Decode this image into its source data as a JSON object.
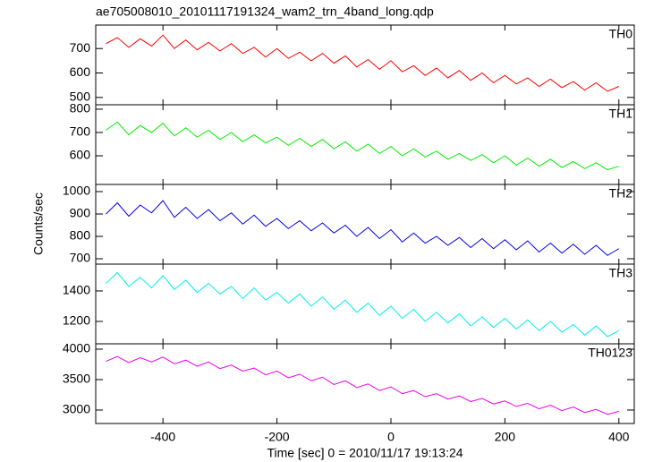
{
  "chart_data": {
    "type": "line",
    "title": "ae705008010_20101117191324_wam2_trn_4band_long.qdp",
    "x_label": "Time [sec] 0 = 2010/11/17 19:13:24",
    "y_label": "Counts/sec",
    "xlim": [
      -518,
      427
    ],
    "xticks": [
      -400,
      -200,
      0,
      200,
      400
    ],
    "x": [
      -500,
      -480,
      -460,
      -440,
      -420,
      -400,
      -380,
      -360,
      -340,
      -320,
      -300,
      -280,
      -260,
      -240,
      -220,
      -200,
      -180,
      -160,
      -140,
      -120,
      -100,
      -80,
      -60,
      -40,
      -20,
      0,
      20,
      40,
      60,
      80,
      100,
      120,
      140,
      160,
      180,
      200,
      220,
      240,
      260,
      280,
      300,
      320,
      340,
      360,
      380,
      400
    ],
    "series": [
      {
        "name": "TH0",
        "color": "#ff0000",
        "ylim": [
          470,
          796
        ],
        "yticks": [
          500,
          600,
          700
        ],
        "values": [
          720,
          745,
          705,
          740,
          710,
          755,
          700,
          735,
          695,
          725,
          690,
          720,
          680,
          705,
          665,
          700,
          660,
          685,
          650,
          680,
          640,
          670,
          625,
          655,
          615,
          650,
          605,
          630,
          590,
          620,
          580,
          610,
          570,
          600,
          560,
          590,
          555,
          580,
          545,
          575,
          540,
          565,
          530,
          560,
          525,
          545
        ]
      },
      {
        "name": "TH1",
        "color": "#00ee00",
        "ylim": [
          477,
          819
        ],
        "yticks": [
          600,
          700,
          800
        ],
        "values": [
          710,
          745,
          690,
          730,
          700,
          740,
          685,
          720,
          680,
          710,
          670,
          700,
          660,
          690,
          655,
          680,
          645,
          675,
          640,
          670,
          630,
          660,
          620,
          650,
          610,
          640,
          600,
          630,
          595,
          620,
          585,
          610,
          580,
          605,
          570,
          600,
          560,
          590,
          555,
          585,
          550,
          575,
          545,
          570,
          540,
          555
        ]
      },
      {
        "name": "TH2",
        "color": "#0000ee",
        "ylim": [
          676,
          1032
        ],
        "yticks": [
          700,
          800,
          900,
          1000
        ],
        "values": [
          900,
          950,
          890,
          940,
          905,
          960,
          885,
          930,
          880,
          920,
          870,
          905,
          855,
          895,
          845,
          880,
          835,
          870,
          825,
          860,
          815,
          850,
          800,
          840,
          790,
          830,
          775,
          815,
          770,
          800,
          760,
          795,
          750,
          790,
          745,
          785,
          740,
          780,
          730,
          770,
          725,
          765,
          720,
          760,
          715,
          745
        ]
      },
      {
        "name": "TH3",
        "color": "#00eeee",
        "ylim": [
          1053,
          1576
        ],
        "yticks": [
          1200,
          1400
        ],
        "values": [
          1450,
          1520,
          1430,
          1490,
          1420,
          1500,
          1410,
          1470,
          1390,
          1450,
          1380,
          1430,
          1350,
          1420,
          1340,
          1390,
          1320,
          1380,
          1300,
          1360,
          1280,
          1340,
          1260,
          1320,
          1240,
          1300,
          1220,
          1280,
          1200,
          1260,
          1190,
          1250,
          1170,
          1230,
          1160,
          1220,
          1150,
          1210,
          1140,
          1200,
          1130,
          1180,
          1110,
          1170,
          1100,
          1140
        ]
      },
      {
        "name": "TH0123",
        "color": "#ee00ee",
        "ylim": [
          2779,
          4088
        ],
        "yticks": [
          3000,
          3500,
          4000
        ],
        "values": [
          3800,
          3880,
          3780,
          3860,
          3790,
          3870,
          3760,
          3820,
          3720,
          3790,
          3680,
          3740,
          3640,
          3690,
          3580,
          3640,
          3530,
          3590,
          3480,
          3540,
          3420,
          3480,
          3370,
          3430,
          3320,
          3380,
          3270,
          3320,
          3220,
          3270,
          3180,
          3230,
          3140,
          3190,
          3100,
          3150,
          3060,
          3110,
          3020,
          3080,
          2990,
          3050,
          2960,
          3010,
          2930,
          2980
        ]
      }
    ]
  }
}
